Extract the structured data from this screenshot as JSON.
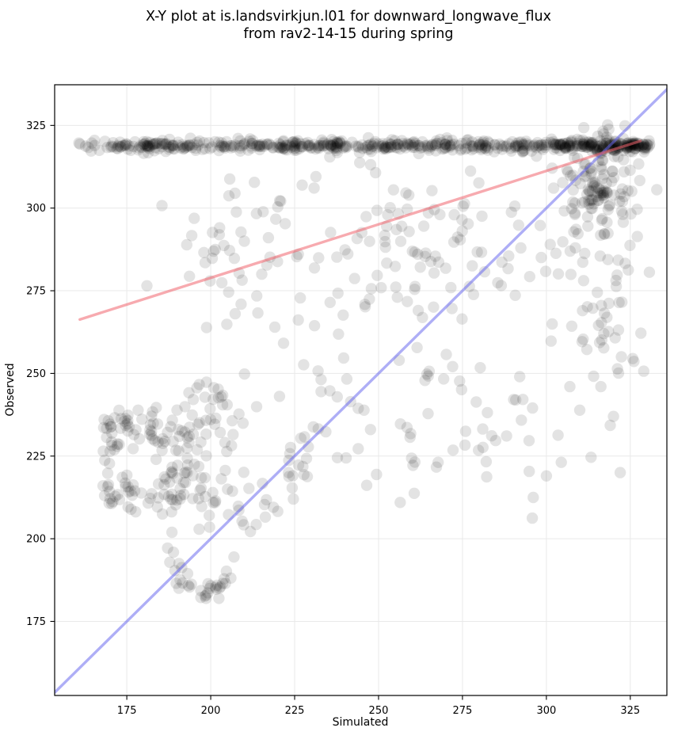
{
  "figure": {
    "title_line1": "X-Y plot at is.landsvirkjun.l01 for downward_longwave_flux",
    "title_line2": "from rav2-14-15 during spring",
    "background_color": "#ffffff"
  },
  "chart_data": {
    "type": "scatter",
    "title": "X-Y plot at is.landsvirkjun.l01 for downward_longwave_flux from rav2-14-15 during spring",
    "xlabel": "Simulated",
    "ylabel": "Observed",
    "xlim": [
      153.5,
      335.9
    ],
    "ylim": [
      152.6,
      337.3
    ],
    "x_ticks": [
      175,
      200,
      225,
      250,
      275,
      300,
      325
    ],
    "y_ticks": [
      175,
      200,
      225,
      250,
      275,
      300,
      325
    ],
    "grid": true,
    "grid_color": "#e9e9e9",
    "spine_color": "#000000",
    "lines": [
      {
        "name": "identity-line",
        "x": [
          153.5,
          335.9
        ],
        "y": [
          153.5,
          335.9
        ],
        "color": "rgba(100,100,238,0.52)",
        "width": 3.4
      },
      {
        "name": "regression-line",
        "x": [
          161,
          328
        ],
        "y": [
          266.3,
          320.3
        ],
        "color": "rgba(240,100,110,0.55)",
        "width": 3.4
      }
    ],
    "scatter_style": {
      "color": "#000000",
      "opacity": 0.11,
      "radius_px": 7.2
    },
    "scatter_summary": {
      "n_points_approx": 1295,
      "saturation_band": {
        "y": 318.8,
        "x_min": 160.3,
        "x_max": 331,
        "description": "very dense horizontal band of observed values at ~318.8, spanning simulated 160-331, darkest from 170-300 and 302-331"
      },
      "clusters_description": "dense cluster just below the band near (316,306); broad sparse midfield over simulated 206-333 and observed 215-316; dense ring-like lower-left cluster around (180,224); U-shaped trail dipping to observed ~183 near simulated 198; isolated point near (181,276)"
    },
    "generator": {
      "seed": 1234,
      "band": {
        "y": 318.8,
        "sigma_y": 0.8,
        "segments": [
          [
            160.3,
            170.5,
            13
          ],
          [
            170.5,
            302,
            420
          ],
          [
            302,
            331,
            175
          ]
        ]
      },
      "blobs": [
        {
          "cx": 316,
          "cy": 306,
          "sx": 5.5,
          "sy": 7,
          "n": 115
        },
        {
          "cx": 317.5,
          "cy": 322,
          "sx": 4,
          "sy": 1.5,
          "n": 10
        },
        {
          "cx": 318,
          "cy": 272,
          "sx": 7,
          "sy": 16,
          "n": 48,
          "clip": {
            "xmax": 331,
            "ymax": 316
          }
        },
        {
          "cx": 264,
          "cy": 288,
          "sx": 27,
          "sy": 15,
          "n": 135,
          "clip": {
            "ymax": 316.5,
            "xmin": 206,
            "xmax": 333
          }
        },
        {
          "cx": 258,
          "cy": 240,
          "sx": 28,
          "sy": 13,
          "n": 55,
          "clip": {
            "xmin": 206
          }
        },
        {
          "cx": 205,
          "cy": 288,
          "sx": 9,
          "sy": 14,
          "n": 40,
          "clip": {
            "ymax": 313
          }
        },
        {
          "cx": 200,
          "cy": 236,
          "sx": 6,
          "sy": 7,
          "n": 40
        },
        {
          "cx": 196,
          "cy": 214,
          "sx": 7,
          "sy": 6,
          "n": 35
        },
        {
          "cx": 276,
          "cy": 226,
          "sx": 20,
          "sy": 11,
          "n": 20
        }
      ],
      "rings": [
        {
          "cx": 179.5,
          "cy": 224,
          "r_min": 5,
          "r_max": 17,
          "n": 120,
          "y_scale": 0.95,
          "clip": {
            "xmin": 167.5
          }
        }
      ],
      "paths": [
        {
          "pts": [
            [
              186,
              204
            ],
            [
              189,
              196
            ],
            [
              191,
              189
            ],
            [
              194,
              184.5
            ],
            [
              198,
              183
            ],
            [
              202,
              185.5
            ],
            [
              205,
              190
            ],
            [
              208,
              196
            ]
          ],
          "jitter": 1.3,
          "n": 36
        },
        {
          "pts": [
            [
              210,
              203
            ],
            [
              216,
              210
            ],
            [
              222,
              218
            ],
            [
              228,
              226
            ],
            [
              233,
              232
            ]
          ],
          "jitter": 3.5,
          "n": 28
        }
      ],
      "extra_points": [
        [
          181,
          276.5
        ],
        [
          320,
          237
        ],
        [
          307,
          246
        ],
        [
          300,
          219
        ],
        [
          322,
          220
        ]
      ]
    }
  }
}
